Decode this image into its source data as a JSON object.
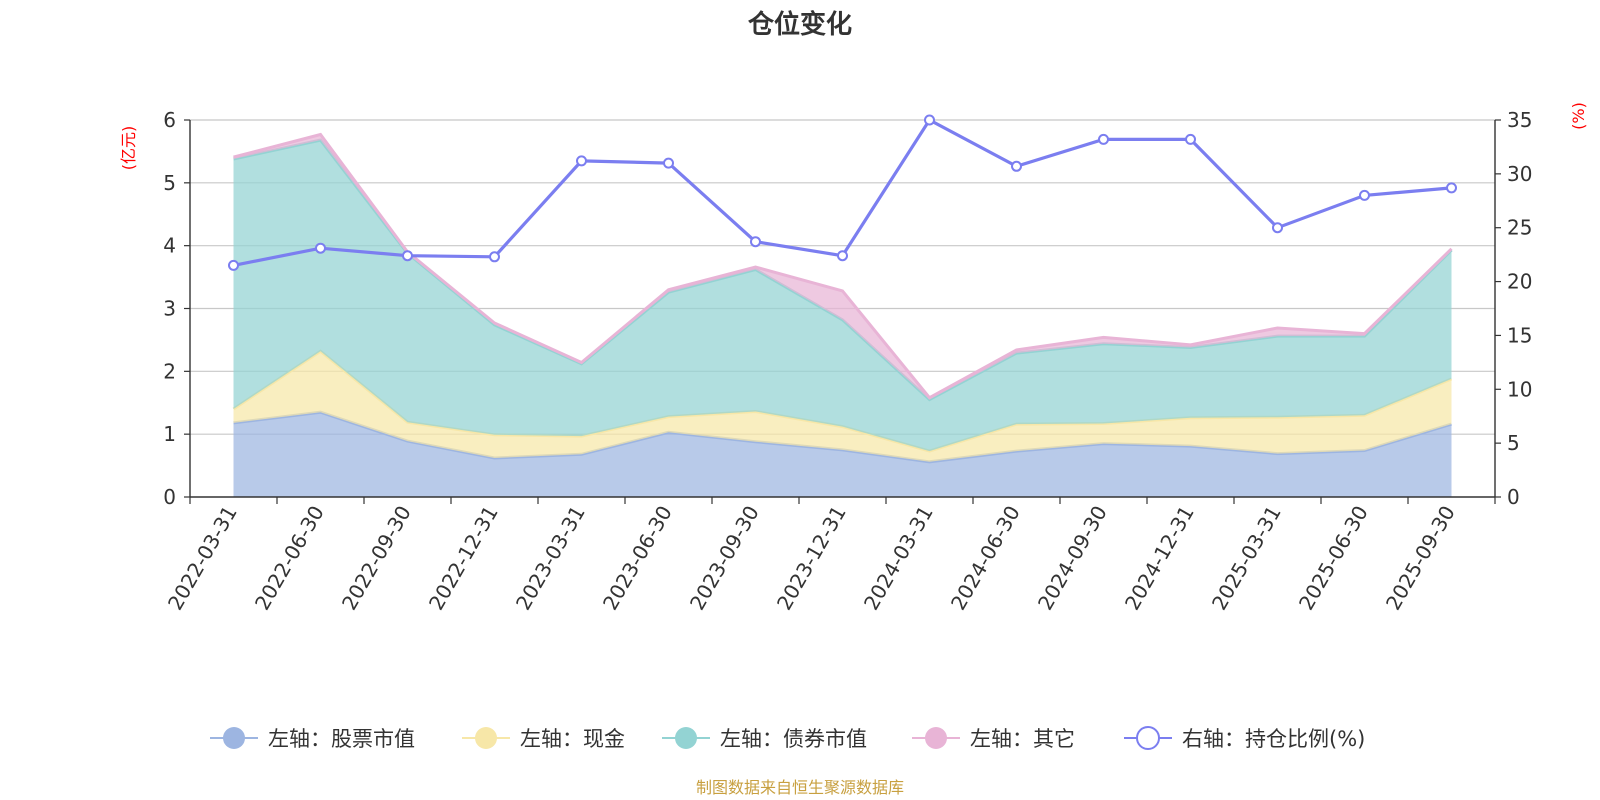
{
  "chart_data": {
    "type": "area",
    "title": "仓位变化",
    "left_axis_unit": "(亿元)",
    "right_axis_unit": "(%)",
    "left_ylim": [
      0,
      6
    ],
    "right_ylim": [
      0,
      35
    ],
    "left_ticks": [
      0,
      1,
      2,
      3,
      4,
      5,
      6
    ],
    "right_ticks": [
      0,
      5,
      10,
      15,
      20,
      25,
      30,
      35
    ],
    "categories": [
      "2022-03-31",
      "2022-06-30",
      "2022-09-30",
      "2022-12-31",
      "2023-03-31",
      "2023-06-30",
      "2023-09-30",
      "2023-12-31",
      "2024-03-31",
      "2024-06-30",
      "2024-09-30",
      "2024-12-31",
      "2025-03-31",
      "2025-06-30",
      "2025-09-30"
    ],
    "series": [
      {
        "name": "左轴：股票市值",
        "axis": "left",
        "stacked": true,
        "color": "#9db5e1",
        "values": [
          1.18,
          1.35,
          0.89,
          0.62,
          0.68,
          1.03,
          0.88,
          0.75,
          0.56,
          0.73,
          0.85,
          0.81,
          0.69,
          0.74,
          1.16
        ]
      },
      {
        "name": "左轴：现金",
        "axis": "left",
        "stacked": true,
        "color": "#f7e7a8",
        "values": [
          0.22,
          0.97,
          0.3,
          0.37,
          0.29,
          0.25,
          0.48,
          0.37,
          0.17,
          0.43,
          0.32,
          0.45,
          0.58,
          0.56,
          0.72
        ]
      },
      {
        "name": "左轴：债券市值",
        "axis": "left",
        "stacked": true,
        "color": "#93d3d3",
        "values": [
          3.98,
          3.36,
          2.69,
          1.75,
          1.15,
          1.98,
          2.26,
          1.7,
          0.82,
          1.13,
          1.27,
          1.12,
          1.29,
          1.26,
          2.05
        ]
      },
      {
        "name": "左轴：其它",
        "axis": "left",
        "stacked": true,
        "color": "#e8b4d6",
        "values": [
          0.03,
          0.09,
          0.02,
          0.03,
          0.02,
          0.04,
          0.04,
          0.46,
          0.03,
          0.05,
          0.1,
          0.04,
          0.13,
          0.04,
          0.02
        ]
      },
      {
        "name": "右轴：持仓比例(%)",
        "axis": "right",
        "stacked": false,
        "color": "#7b7ef0",
        "values": [
          21.5,
          23.1,
          22.4,
          22.3,
          31.2,
          31.0,
          23.7,
          22.4,
          35.0,
          30.7,
          33.2,
          33.2,
          25.0,
          28.0,
          28.7
        ]
      }
    ],
    "source_note": "制图数据来自恒生聚源数据库"
  }
}
